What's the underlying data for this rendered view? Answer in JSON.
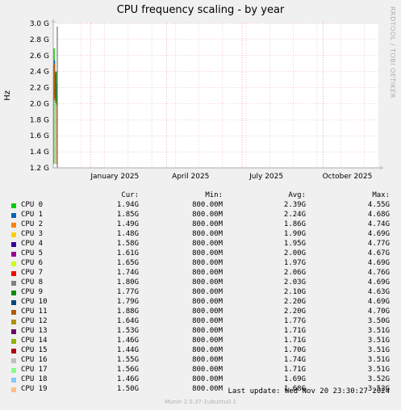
{
  "title": "CPU frequency scaling - by year",
  "side_label": "RRDTOOL / TOBI OETIKER",
  "footer": "Munin 2.0.37-1ubuntu0.1",
  "last_update": "Last update: Wed Nov 20 23:30:27 2024",
  "legend_headers": {
    "cur": "Cur:",
    "min": "Min:",
    "avg": "Avg:",
    "max": "Max:"
  },
  "chart_data": {
    "type": "line",
    "title": "CPU frequency scaling - by year",
    "ylabel": "Hz",
    "ylim": [
      1.2,
      3.0
    ],
    "y_unit": "GHz",
    "y_ticks": [
      "3.0 G",
      "2.8 G",
      "2.6 G",
      "2.4 G",
      "2.2 G",
      "2.0 G",
      "1.8 G",
      "1.6 G",
      "1.4 G",
      "1.2 G"
    ],
    "x_ticks": [
      "January 2025",
      "April 2025",
      "July 2025",
      "October 2025"
    ],
    "x_range": [
      "2024-11",
      "2025-12"
    ],
    "grid": true,
    "series": [
      {
        "name": "CPU 0",
        "color": "#00cc00",
        "cur": "1.94G",
        "min": "800.00M",
        "avg": "2.39G",
        "max": "4.55G"
      },
      {
        "name": "CPU 1",
        "color": "#0066b3",
        "cur": "1.85G",
        "min": "800.00M",
        "avg": "2.24G",
        "max": "4.68G"
      },
      {
        "name": "CPU 2",
        "color": "#ff8000",
        "cur": "1.49G",
        "min": "800.00M",
        "avg": "1.86G",
        "max": "4.74G"
      },
      {
        "name": "CPU 3",
        "color": "#ffcc00",
        "cur": "1.48G",
        "min": "800.00M",
        "avg": "1.90G",
        "max": "4.69G"
      },
      {
        "name": "CPU 4",
        "color": "#330099",
        "cur": "1.58G",
        "min": "800.00M",
        "avg": "1.95G",
        "max": "4.77G"
      },
      {
        "name": "CPU 5",
        "color": "#990099",
        "cur": "1.61G",
        "min": "800.00M",
        "avg": "2.00G",
        "max": "4.67G"
      },
      {
        "name": "CPU 6",
        "color": "#ccff00",
        "cur": "1.65G",
        "min": "800.00M",
        "avg": "1.97G",
        "max": "4.69G"
      },
      {
        "name": "CPU 7",
        "color": "#ff0000",
        "cur": "1.74G",
        "min": "800.00M",
        "avg": "2.06G",
        "max": "4.76G"
      },
      {
        "name": "CPU 8",
        "color": "#808080",
        "cur": "1.80G",
        "min": "800.00M",
        "avg": "2.03G",
        "max": "4.69G"
      },
      {
        "name": "CPU 9",
        "color": "#008f00",
        "cur": "1.77G",
        "min": "800.00M",
        "avg": "2.10G",
        "max": "4.63G"
      },
      {
        "name": "CPU 10",
        "color": "#00487d",
        "cur": "1.79G",
        "min": "800.00M",
        "avg": "2.20G",
        "max": "4.69G"
      },
      {
        "name": "CPU 11",
        "color": "#b35a00",
        "cur": "1.88G",
        "min": "800.00M",
        "avg": "2.20G",
        "max": "4.70G"
      },
      {
        "name": "CPU 12",
        "color": "#b38f00",
        "cur": "1.64G",
        "min": "800.00M",
        "avg": "1.77G",
        "max": "3.50G"
      },
      {
        "name": "CPU 13",
        "color": "#6b006b",
        "cur": "1.53G",
        "min": "800.00M",
        "avg": "1.71G",
        "max": "3.51G"
      },
      {
        "name": "CPU 14",
        "color": "#8fb300",
        "cur": "1.46G",
        "min": "800.00M",
        "avg": "1.71G",
        "max": "3.51G"
      },
      {
        "name": "CPU 15",
        "color": "#b30000",
        "cur": "1.44G",
        "min": "800.00M",
        "avg": "1.70G",
        "max": "3.51G"
      },
      {
        "name": "CPU 16",
        "color": "#bebebe",
        "cur": "1.55G",
        "min": "800.00M",
        "avg": "1.74G",
        "max": "3.51G"
      },
      {
        "name": "CPU 17",
        "color": "#80ff80",
        "cur": "1.56G",
        "min": "800.00M",
        "avg": "1.71G",
        "max": "3.51G"
      },
      {
        "name": "CPU 18",
        "color": "#80c9ff",
        "cur": "1.46G",
        "min": "800.00M",
        "avg": "1.69G",
        "max": "3.52G"
      },
      {
        "name": "CPU 19",
        "color": "#ffc080",
        "cur": "1.50G",
        "min": "800.00M",
        "avg": "1.68G",
        "max": "3.52G"
      }
    ]
  }
}
